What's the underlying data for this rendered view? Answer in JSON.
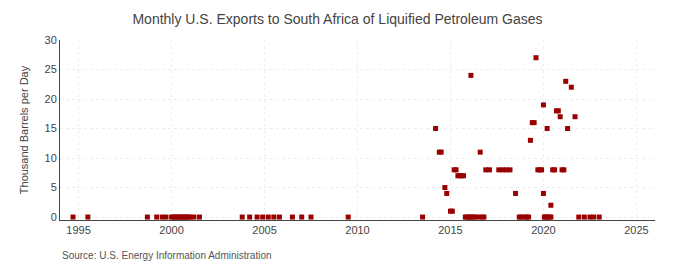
{
  "chart_data": {
    "type": "scatter",
    "title": "Monthly U.S. Exports to South Africa of Liquified Petroleum Gases",
    "ylabel": "Thousand Barrels per Day",
    "annotations": [
      "Source: U.S. Energy Information Administration"
    ],
    "xlim": [
      1994,
      2026
    ],
    "ylim": [
      -0.5,
      30
    ],
    "xticks": [
      1995,
      2000,
      2005,
      2010,
      2015,
      2020,
      2025
    ],
    "yticks": [
      0,
      5,
      10,
      15,
      20,
      25,
      30
    ],
    "grid": true,
    "color": "#990000",
    "marker": "square",
    "x": [
      1994.7,
      1995.5,
      1998.7,
      1999.2,
      1999.5,
      1999.7,
      2000.0,
      2000.1,
      2000.2,
      2000.3,
      2000.4,
      2000.5,
      2000.6,
      2000.7,
      2000.8,
      2000.9,
      2001.0,
      2001.2,
      2001.5,
      2003.8,
      2004.2,
      2004.6,
      2004.9,
      2005.2,
      2005.5,
      2005.8,
      2006.5,
      2007.0,
      2007.5,
      2009.5,
      2013.5,
      2014.2,
      2014.4,
      2014.5,
      2014.7,
      2014.8,
      2015.0,
      2015.1,
      2015.2,
      2015.3,
      2015.4,
      2015.5,
      2015.6,
      2015.7,
      2015.8,
      2015.9,
      2016.0,
      2016.1,
      2016.2,
      2016.3,
      2016.5,
      2016.7,
      2016.8,
      2016.1,
      2016.6,
      2016.9,
      2017.1,
      2017.6,
      2017.8,
      2018.0,
      2018.2,
      2018.5,
      2018.7,
      2018.8,
      2019.0,
      2019.1,
      2019.2,
      2019.3,
      2019.4,
      2019.5,
      2019.6,
      2019.7,
      2019.8,
      2019.9,
      2020.0,
      2020.05,
      2020.1,
      2020.2,
      2020.3,
      2020.4,
      2020.0,
      2020.2,
      2020.4,
      2020.5,
      2020.6,
      2020.7,
      2020.8,
      2020.9,
      2021.0,
      2021.1,
      2021.2,
      2021.3,
      2021.5,
      2021.7,
      2021.9,
      2022.2,
      2022.5,
      2022.7,
      2023.0
    ],
    "values": [
      0,
      0,
      0,
      0,
      0,
      0,
      0,
      0,
      0,
      0,
      0,
      0,
      0,
      0,
      0,
      0,
      0,
      0,
      0,
      0,
      0,
      0,
      0,
      0,
      0,
      0,
      0,
      0,
      0,
      0,
      0,
      15,
      11,
      11,
      5,
      4,
      1,
      1,
      8,
      8,
      7,
      7,
      7,
      7,
      0,
      0,
      0,
      0,
      0,
      0,
      0,
      0,
      0,
      24,
      11,
      8,
      8,
      8,
      8,
      8,
      8,
      4,
      0,
      0,
      0,
      0,
      0,
      13,
      16,
      16,
      27,
      8,
      8,
      8,
      4,
      0,
      0,
      0,
      0,
      0,
      19,
      15,
      2,
      8,
      8,
      18,
      18,
      17,
      8,
      8,
      23,
      15,
      22,
      17,
      0,
      0,
      0,
      0,
      0
    ]
  }
}
